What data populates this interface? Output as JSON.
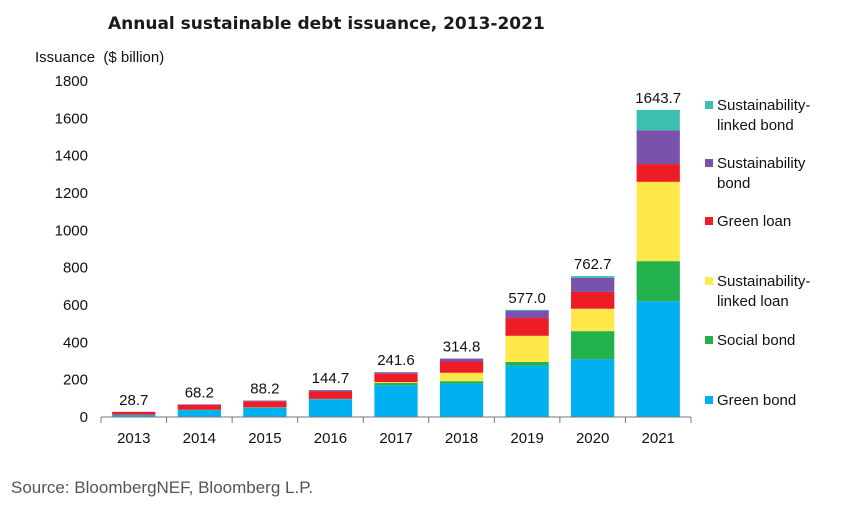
{
  "chart_data": {
    "type": "bar",
    "stacked": true,
    "title": "Annual sustainable debt issuance, 2013-2021",
    "ylabel": "Issuance  ($ billion)",
    "xlabel": "",
    "ylim": [
      0,
      1800
    ],
    "yticks": [
      0,
      200,
      400,
      600,
      800,
      1000,
      1200,
      1400,
      1600,
      1800
    ],
    "grid": false,
    "legend_position": "right",
    "categories": [
      "2013",
      "2014",
      "2015",
      "2016",
      "2017",
      "2018",
      "2019",
      "2020",
      "2021"
    ],
    "totals": [
      "28.7",
      "68.2",
      "88.2",
      "144.7",
      "241.6",
      "314.8",
      "577.0",
      "762.7",
      "1643.7"
    ],
    "series": [
      {
        "name": "Green bond",
        "color": "#00b0f0",
        "values": [
          11,
          37,
          50,
          95,
          170,
          180,
          275,
          310,
          620
        ]
      },
      {
        "name": "Social bond",
        "color": "#22b14c",
        "values": [
          1,
          2,
          2,
          2,
          12,
          12,
          20,
          150,
          215
        ]
      },
      {
        "name": "Sustainability-linked loan",
        "color": "#ffe84a",
        "values": [
          0,
          0,
          0,
          0,
          5,
          45,
          140,
          120,
          425
        ]
      },
      {
        "name": "Green loan",
        "color": "#ee1c25",
        "values": [
          15,
          26,
          32,
          40,
          45,
          60,
          95,
          90,
          95
        ]
      },
      {
        "name": "Sustainability bond",
        "color": "#7b52ab",
        "values": [
          1,
          3,
          4,
          7,
          8,
          16,
          40,
          75,
          180
        ]
      },
      {
        "name": "Sustainability-linked bond",
        "color": "#3cbfb0",
        "values": [
          0,
          0,
          0,
          0,
          0,
          0,
          4,
          10,
          110
        ]
      }
    ],
    "legend_order": [
      5,
      4,
      3,
      2,
      1,
      0
    ]
  },
  "source": "Source: BloombergNEF, Bloomberg L.P."
}
